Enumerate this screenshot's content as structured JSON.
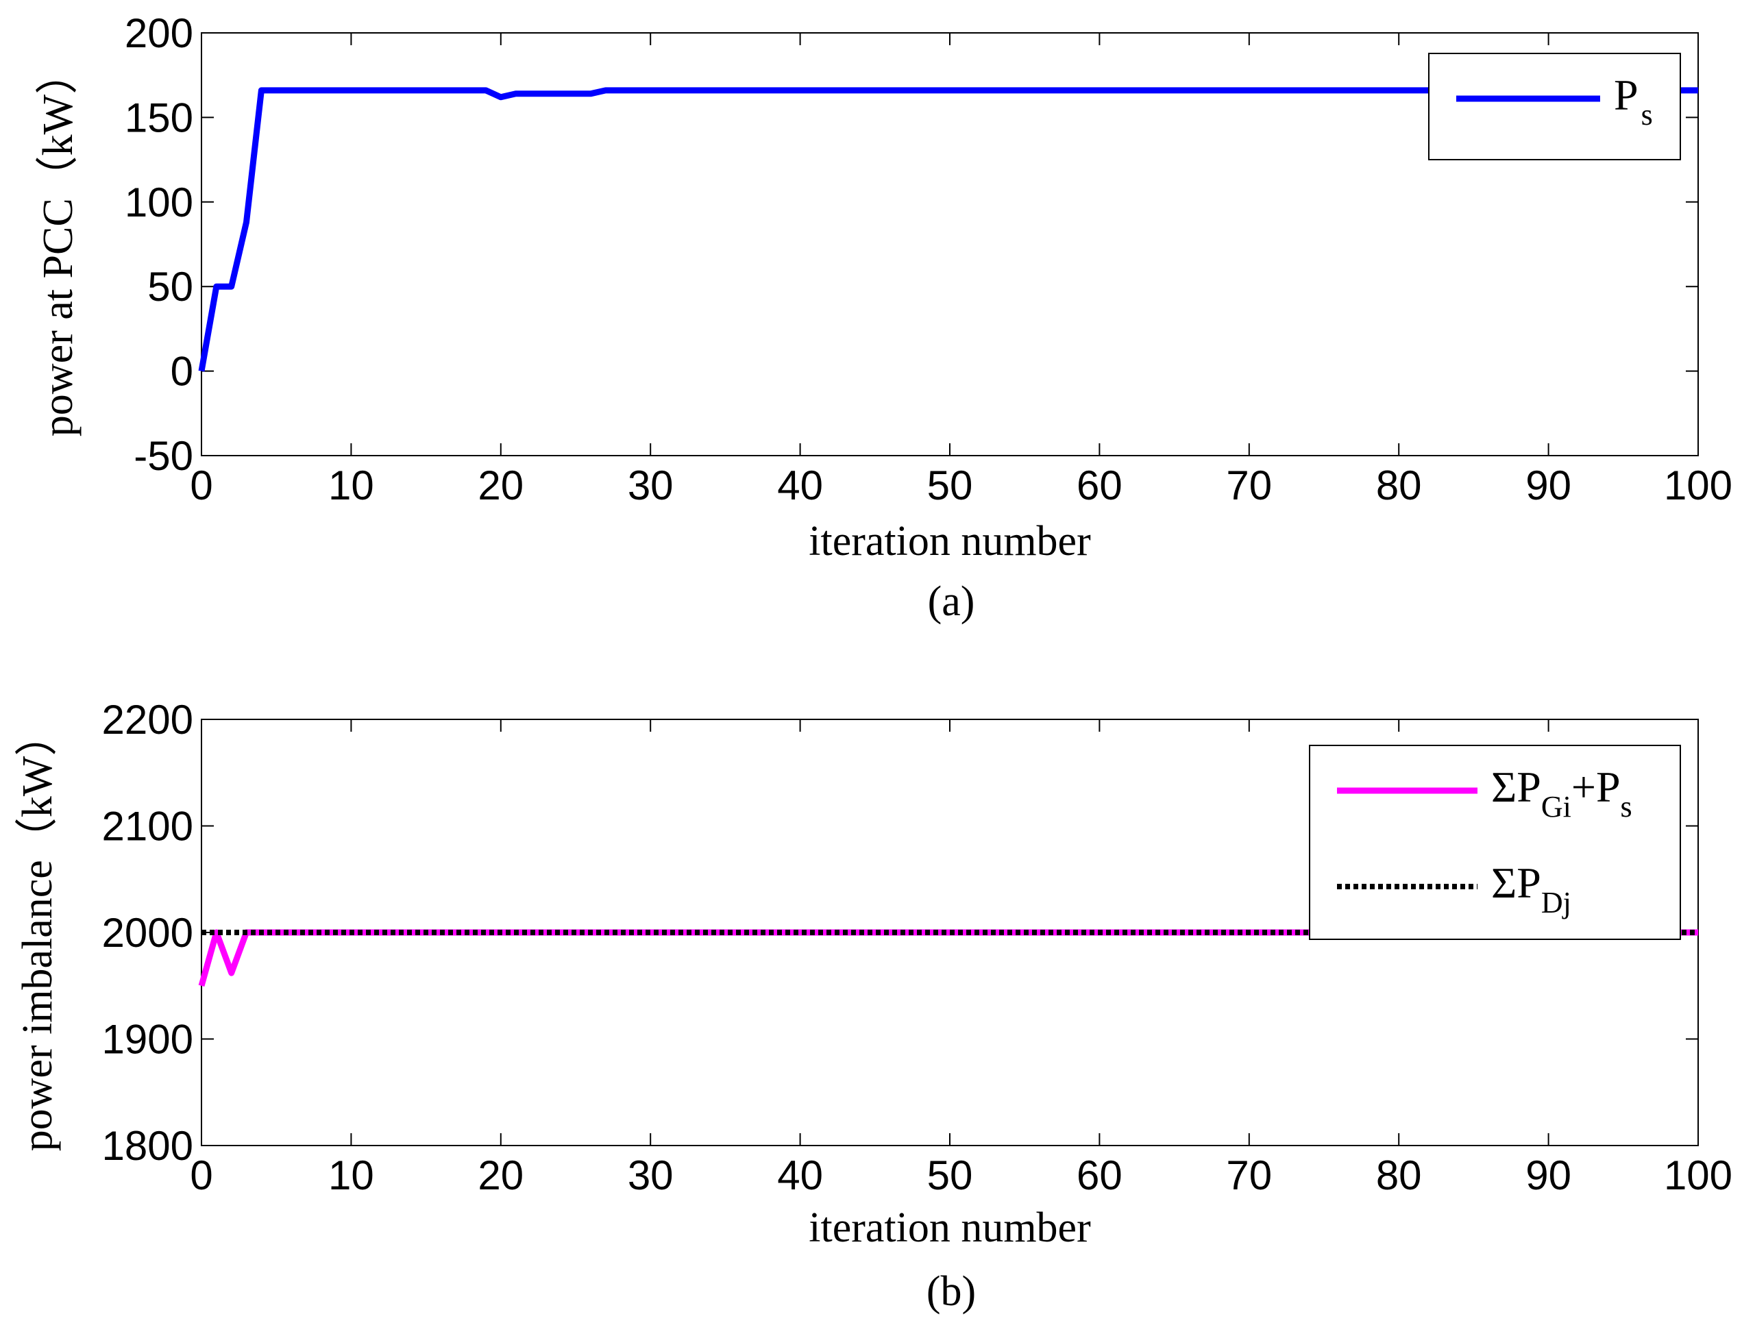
{
  "chart_data": [
    {
      "type": "line",
      "panel_label": "(a)",
      "xlabel": "iteration number",
      "ylabel": "power at PCC（kW）",
      "xlim": [
        0,
        100
      ],
      "ylim": [
        -50,
        200
      ],
      "xticks": [
        0,
        10,
        20,
        30,
        40,
        50,
        60,
        70,
        80,
        90,
        100
      ],
      "yticks": [
        -50,
        0,
        50,
        100,
        150,
        200
      ],
      "grid": false,
      "legend_position": "top-right",
      "series": [
        {
          "name": "Ps",
          "legend_main": "P",
          "legend_sub": "s",
          "color": "#0000FF",
          "style": "solid",
          "x": [
            0,
            1,
            2,
            3,
            4,
            19,
            20,
            21,
            26,
            27,
            100
          ],
          "y": [
            0,
            50,
            50,
            88,
            166,
            166,
            162,
            164,
            164,
            166,
            166
          ]
        }
      ]
    },
    {
      "type": "line",
      "panel_label": "(b)",
      "xlabel": "iteration number",
      "ylabel": "power imbalance（kW）",
      "xlim": [
        0,
        100
      ],
      "ylim": [
        1800,
        2200
      ],
      "xticks": [
        0,
        10,
        20,
        30,
        40,
        50,
        60,
        70,
        80,
        90,
        100
      ],
      "yticks": [
        1800,
        1900,
        2000,
        2100,
        2200
      ],
      "grid": false,
      "legend_position": "top-right",
      "series": [
        {
          "name": "ΣPGi+Ps",
          "legend_parts": [
            [
              "ΣP",
              ""
            ],
            [
              "Gi",
              "sub"
            ],
            [
              "+P",
              ""
            ],
            [
              "s",
              "sub"
            ]
          ],
          "color": "#FF00FF",
          "style": "solid",
          "x": [
            0,
            1,
            2,
            3,
            100
          ],
          "y": [
            1950,
            2000,
            1962,
            2000,
            2000
          ]
        },
        {
          "name": "ΣPDj",
          "legend_parts": [
            [
              "ΣP",
              ""
            ],
            [
              "Dj",
              "sub"
            ]
          ],
          "color": "#000000",
          "style": "dotted",
          "x": [
            0,
            100
          ],
          "y": [
            2000,
            2000
          ]
        }
      ]
    }
  ]
}
